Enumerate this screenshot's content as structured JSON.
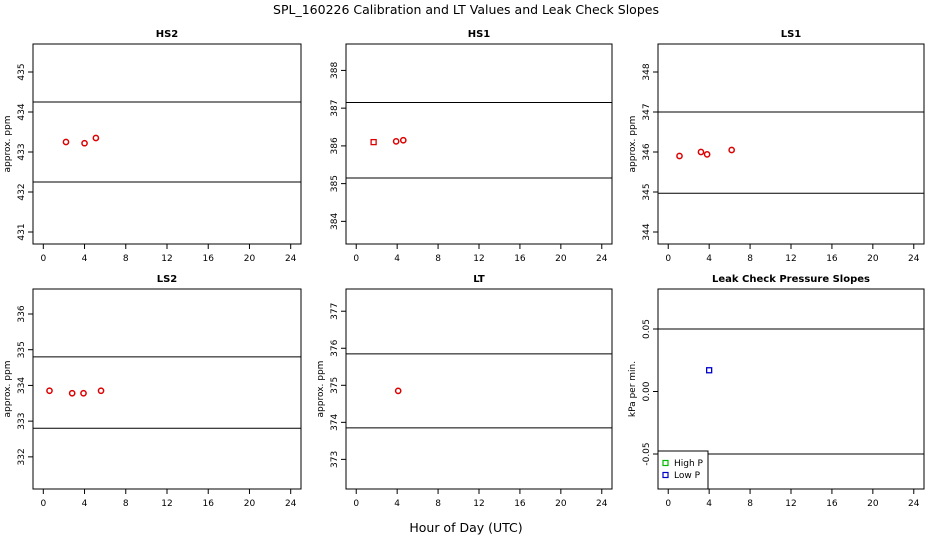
{
  "figure": {
    "title": "SPL_160226  Calibration and LT Values and Leak Check Slopes",
    "xlabel": "Hour of Day (UTC)"
  },
  "chart_data": [
    {
      "type": "scatter",
      "title": "HS2",
      "xlabel": "",
      "ylabel": "approx. ppm",
      "xlim": [
        -1,
        25
      ],
      "ylim": [
        430.7,
        435.7
      ],
      "xticks": [
        "0",
        "4",
        "8",
        "12",
        "16",
        "20",
        "24"
      ],
      "yticks": [
        "431",
        "432",
        "433",
        "434",
        "435"
      ],
      "hlines": [
        434.25,
        432.25
      ],
      "series": [
        {
          "marker": "circle",
          "color": "#dd0000",
          "points": [
            {
              "x": 2.2,
              "y": 433.25
            },
            {
              "x": 4.0,
              "y": 433.22
            },
            {
              "x": 5.1,
              "y": 433.35
            }
          ]
        }
      ]
    },
    {
      "type": "scatter",
      "title": "HS1",
      "xlabel": "",
      "ylabel": "",
      "xlim": [
        -1,
        25
      ],
      "ylim": [
        383.4,
        388.7
      ],
      "xticks": [
        "0",
        "4",
        "8",
        "12",
        "16",
        "20",
        "24"
      ],
      "yticks": [
        "384",
        "385",
        "386",
        "387",
        "388"
      ],
      "hlines": [
        387.15,
        385.15
      ],
      "series": [
        {
          "marker": "square",
          "color": "#dd0000",
          "points": [
            {
              "x": 1.7,
              "y": 386.1
            }
          ]
        },
        {
          "marker": "circle",
          "color": "#dd0000",
          "points": [
            {
              "x": 3.9,
              "y": 386.12
            },
            {
              "x": 4.6,
              "y": 386.15
            }
          ]
        }
      ]
    },
    {
      "type": "scatter",
      "title": "LS1",
      "xlabel": "",
      "ylabel": "approx. ppm",
      "xlim": [
        -1,
        25
      ],
      "ylim": [
        343.7,
        348.7
      ],
      "xticks": [
        "0",
        "4",
        "8",
        "12",
        "16",
        "20",
        "24"
      ],
      "yticks": [
        "344",
        "345",
        "346",
        "347",
        "348"
      ],
      "hlines": [
        347.0,
        344.97
      ],
      "series": [
        {
          "marker": "circle",
          "color": "#dd0000",
          "points": [
            {
              "x": 1.1,
              "y": 345.9
            },
            {
              "x": 3.2,
              "y": 346.0
            },
            {
              "x": 3.8,
              "y": 345.94
            },
            {
              "x": 6.2,
              "y": 346.05
            }
          ]
        }
      ]
    },
    {
      "type": "scatter",
      "title": "LS2",
      "xlabel": "",
      "ylabel": "approx. ppm",
      "xlim": [
        -1,
        25
      ],
      "ylim": [
        331.1,
        336.7
      ],
      "xticks": [
        "0",
        "4",
        "8",
        "12",
        "16",
        "20",
        "24"
      ],
      "yticks": [
        "332",
        "333",
        "334",
        "335",
        "336"
      ],
      "hlines": [
        334.8,
        332.8
      ],
      "series": [
        {
          "marker": "circle",
          "color": "#dd0000",
          "points": [
            {
              "x": 0.6,
              "y": 333.85
            },
            {
              "x": 2.8,
              "y": 333.78
            },
            {
              "x": 3.9,
              "y": 333.78
            },
            {
              "x": 5.6,
              "y": 333.85
            }
          ]
        }
      ]
    },
    {
      "type": "scatter",
      "title": "LT",
      "xlabel": "",
      "ylabel": "approx. ppm",
      "xlim": [
        -1,
        25
      ],
      "ylim": [
        372.2,
        377.6
      ],
      "xticks": [
        "0",
        "4",
        "8",
        "12",
        "16",
        "20",
        "24"
      ],
      "yticks": [
        "373",
        "374",
        "375",
        "376",
        "377"
      ],
      "hlines": [
        375.85,
        373.85
      ],
      "series": [
        {
          "marker": "circle",
          "color": "#dd0000",
          "points": [
            {
              "x": 4.1,
              "y": 374.85
            }
          ]
        }
      ]
    },
    {
      "type": "scatter",
      "title": "Leak Check Pressure Slopes",
      "xlabel": "",
      "ylabel": "kPa per min.",
      "xlim": [
        -1,
        25
      ],
      "ylim": [
        -0.078,
        0.082
      ],
      "xticks": [
        "0",
        "4",
        "8",
        "12",
        "16",
        "20",
        "24"
      ],
      "yticks": [
        "-0.05",
        "0.00",
        "0.05"
      ],
      "hlines": [
        0.05,
        -0.05
      ],
      "series": [
        {
          "name": "High P",
          "marker": "square",
          "color": "#00bb00",
          "points": []
        },
        {
          "name": "Low P",
          "marker": "square",
          "color": "#0000cc",
          "points": [
            {
              "x": 4.0,
              "y": 0.017
            }
          ]
        }
      ],
      "legend": {
        "placement": "bottom-left"
      }
    }
  ]
}
